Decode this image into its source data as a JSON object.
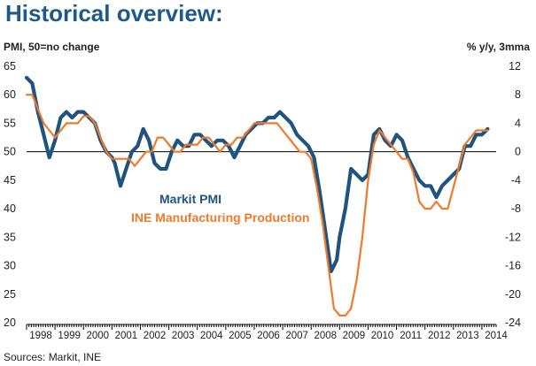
{
  "chart_data": {
    "type": "line",
    "title": "Historical overview:",
    "left_axis_label": "PMI, 50=no change",
    "right_axis_label": "% y/y, 3mma",
    "source": "Sources: Markit, INE",
    "left_ylim": [
      20,
      65
    ],
    "left_ticks": [
      20,
      25,
      30,
      35,
      40,
      45,
      50,
      55,
      60,
      65
    ],
    "right_ylim": [
      -24,
      12
    ],
    "right_ticks": [
      -24,
      -20,
      -16,
      -12,
      -8,
      -4,
      0,
      4,
      8,
      12
    ],
    "reference_line_left": 50,
    "x_range": [
      1998.0,
      2014.5
    ],
    "x_tick_labels": [
      "1998",
      "1999",
      "2000",
      "2001",
      "2002",
      "2003",
      "2004",
      "2005",
      "2006",
      "2007",
      "2008",
      "2009",
      "2010",
      "2011",
      "2012",
      "2013",
      "2014"
    ],
    "colors": {
      "pmi": "#1f5480",
      "ine": "#f07a2a",
      "title": "#1d5a8c"
    },
    "series": [
      {
        "name": "Markit PMI",
        "axis": "left",
        "color": "#1f5480",
        "x": [
          1998.0,
          1998.2,
          1998.4,
          1998.6,
          1998.8,
          1999.0,
          1999.2,
          1999.4,
          1999.6,
          1999.8,
          2000.0,
          2000.2,
          2000.4,
          2000.6,
          2000.8,
          2001.0,
          2001.1,
          2001.3,
          2001.5,
          2001.7,
          2001.9,
          2002.1,
          2002.3,
          2002.5,
          2002.7,
          2002.9,
          2003.1,
          2003.3,
          2003.5,
          2003.7,
          2003.9,
          2004.1,
          2004.3,
          2004.5,
          2004.7,
          2004.9,
          2005.1,
          2005.3,
          2005.5,
          2005.7,
          2005.9,
          2006.1,
          2006.3,
          2006.5,
          2006.7,
          2006.9,
          2007.1,
          2007.3,
          2007.5,
          2007.7,
          2007.9,
          2008.1,
          2008.3,
          2008.5,
          2008.7,
          2008.9,
          2009.0,
          2009.2,
          2009.4,
          2009.6,
          2009.8,
          2010.0,
          2010.2,
          2010.4,
          2010.6,
          2010.8,
          2011.0,
          2011.2,
          2011.4,
          2011.6,
          2011.8,
          2012.0,
          2012.2,
          2012.4,
          2012.6,
          2012.8,
          2013.0,
          2013.2,
          2013.4,
          2013.6,
          2013.8,
          2014.0,
          2014.2
        ],
        "values": [
          63,
          62,
          57,
          53,
          49,
          52,
          56,
          57,
          56,
          57,
          57,
          56,
          55,
          52,
          50,
          49,
          48,
          44,
          47,
          50,
          51,
          54,
          52,
          48,
          47,
          47,
          50,
          52,
          51,
          51,
          53,
          53,
          52,
          51,
          52,
          52,
          51,
          49,
          51,
          53,
          54,
          55,
          55,
          56,
          56,
          57,
          56,
          55,
          53,
          52,
          51,
          49,
          43,
          36,
          29,
          31,
          35,
          40,
          47,
          46,
          45,
          46,
          53,
          54,
          52,
          51,
          53,
          52,
          49,
          47,
          45,
          44,
          44,
          42,
          44,
          45,
          46,
          47,
          51,
          51,
          53,
          53,
          54
        ]
      },
      {
        "name": "INE Manufacturing Production",
        "axis": "right",
        "color": "#f07a2a",
        "x": [
          1998.0,
          1998.2,
          1998.4,
          1998.6,
          1998.8,
          1999.0,
          1999.2,
          1999.4,
          1999.6,
          1999.8,
          2000.0,
          2000.2,
          2000.4,
          2000.6,
          2000.8,
          2001.0,
          2001.2,
          2001.4,
          2001.6,
          2001.8,
          2002.0,
          2002.2,
          2002.4,
          2002.6,
          2002.8,
          2003.0,
          2003.2,
          2003.4,
          2003.6,
          2003.8,
          2004.0,
          2004.2,
          2004.4,
          2004.6,
          2004.8,
          2005.0,
          2005.2,
          2005.4,
          2005.6,
          2005.8,
          2006.0,
          2006.2,
          2006.4,
          2006.6,
          2006.8,
          2007.0,
          2007.2,
          2007.4,
          2007.6,
          2007.8,
          2008.0,
          2008.2,
          2008.4,
          2008.6,
          2008.8,
          2009.0,
          2009.2,
          2009.4,
          2009.6,
          2009.8,
          2010.0,
          2010.2,
          2010.4,
          2010.6,
          2010.8,
          2011.0,
          2011.2,
          2011.4,
          2011.6,
          2011.8,
          2012.0,
          2012.2,
          2012.4,
          2012.6,
          2012.8,
          2013.0,
          2013.2,
          2013.4,
          2013.6,
          2013.8,
          2014.0,
          2014.2
        ],
        "values": [
          8,
          8,
          6,
          4,
          3,
          2,
          3,
          4,
          4,
          4,
          5,
          5,
          4,
          2,
          0,
          -1,
          -1,
          -1,
          -1,
          -2,
          -1,
          0,
          0,
          2,
          2,
          1,
          0,
          0,
          1,
          1,
          1,
          2,
          2,
          1,
          0,
          1,
          1,
          2,
          2,
          3,
          4,
          4,
          4,
          4,
          4,
          3,
          2,
          1,
          0,
          0,
          -1,
          -5,
          -10,
          -16,
          -22,
          -23,
          -23,
          -22,
          -18,
          -12,
          -4,
          1,
          3,
          2,
          1,
          0,
          -1,
          -1,
          -3,
          -7,
          -8,
          -8,
          -7,
          -8,
          -8,
          -5,
          -2,
          1,
          2,
          3,
          3,
          3
        ]
      }
    ],
    "legend": [
      {
        "label": "Markit PMI",
        "color": "#1f5480"
      },
      {
        "label": "INE Manufacturing Production",
        "color": "#f07a2a"
      }
    ]
  }
}
